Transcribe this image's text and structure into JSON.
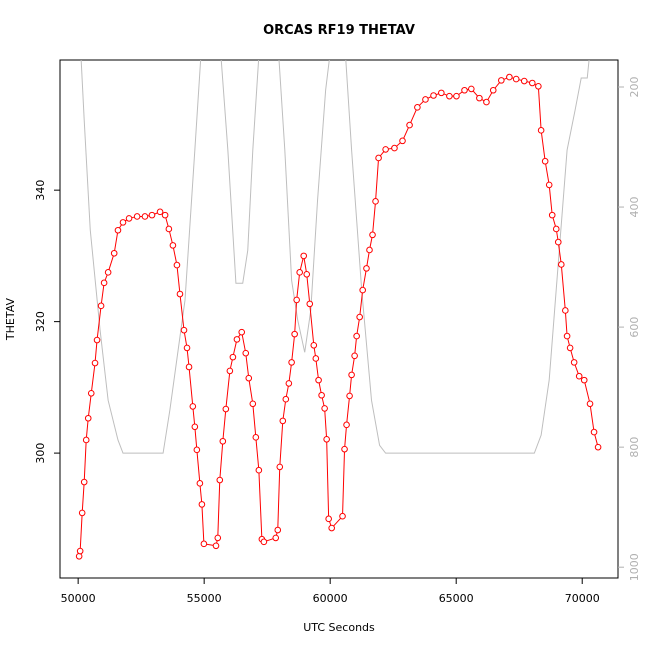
{
  "chart_data": {
    "type": "line",
    "title": "ORCAS RF19 THETAV",
    "xlabel": "UTC Seconds",
    "ylabel": "THETAV",
    "xlim": [
      49280,
      71420
    ],
    "xticks": [
      50000,
      55000,
      60000,
      65000,
      70000
    ],
    "ylim": [
      281,
      359.8
    ],
    "yticks": [
      300,
      320,
      340
    ],
    "y2lim": [
      1018,
      155
    ],
    "y2ticks": [
      200,
      400,
      600,
      800,
      1000
    ],
    "series": [
      {
        "color": "#ff0000",
        "markers": true,
        "x": [
          50040,
          50080,
          50160,
          50240,
          50320,
          50400,
          50520,
          50670,
          50750,
          50910,
          51030,
          51190,
          51430,
          51580,
          51780,
          52020,
          52340,
          52650,
          52930,
          53250,
          53450,
          53600,
          53760,
          53920,
          54040,
          54200,
          54320,
          54400,
          54550,
          54630,
          54710,
          54830,
          54910,
          54990,
          55470,
          55540,
          55620,
          55740,
          55860,
          56020,
          56140,
          56300,
          56490,
          56650,
          56770,
          56930,
          57050,
          57170,
          57290,
          57370,
          57840,
          57920,
          58000,
          58120,
          58240,
          58360,
          58470,
          58590,
          58670,
          58790,
          58950,
          59070,
          59190,
          59350,
          59430,
          59540,
          59660,
          59780,
          59860,
          59940,
          60060,
          60490,
          60570,
          60650,
          60770,
          60850,
          60970,
          61050,
          61170,
          61290,
          61440,
          61560,
          61680,
          61800,
          61920,
          62200,
          62550,
          62870,
          63150,
          63460,
          63780,
          64100,
          64410,
          64730,
          65010,
          65330,
          65600,
          65920,
          66200,
          66470,
          66790,
          67110,
          67380,
          67700,
          68020,
          68260,
          68370,
          68530,
          68690,
          68810,
          68970,
          69050,
          69170,
          69330,
          69400,
          69520,
          69680,
          69880,
          70080,
          70310,
          70470,
          70630
        ],
        "values": [
          284.3,
          285.1,
          290.9,
          295.6,
          302.0,
          305.3,
          309.1,
          313.7,
          317.2,
          322.4,
          325.9,
          327.5,
          330.4,
          333.9,
          335.1,
          335.7,
          336.0,
          336.0,
          336.2,
          336.7,
          336.2,
          334.1,
          331.6,
          328.6,
          324.2,
          318.7,
          316.0,
          313.1,
          307.1,
          304.0,
          300.5,
          295.4,
          292.2,
          286.2,
          285.9,
          287.1,
          295.9,
          301.8,
          306.7,
          312.5,
          314.6,
          317.3,
          318.4,
          315.2,
          311.4,
          307.5,
          302.4,
          297.4,
          286.9,
          286.5,
          287.1,
          288.3,
          297.9,
          304.9,
          308.2,
          310.6,
          313.8,
          318.1,
          323.3,
          327.5,
          330.0,
          327.2,
          322.7,
          316.4,
          314.4,
          311.1,
          308.8,
          306.8,
          302.1,
          290.0,
          288.6,
          290.4,
          300.6,
          304.3,
          308.7,
          311.9,
          314.8,
          317.8,
          320.7,
          324.8,
          328.1,
          330.9,
          333.2,
          338.3,
          344.9,
          346.2,
          346.4,
          347.5,
          349.9,
          352.6,
          353.8,
          354.4,
          354.8,
          354.3,
          354.3,
          355.2,
          355.4,
          354.0,
          353.4,
          355.2,
          356.7,
          357.2,
          356.9,
          356.6,
          356.3,
          355.8,
          349.1,
          344.4,
          340.8,
          336.2,
          334.1,
          332.1,
          328.7,
          321.7,
          317.8,
          316.0,
          313.8,
          311.7,
          311.1,
          307.5,
          303.2,
          300.9
        ]
      },
      {
        "color": "#bebebe",
        "markers": false,
        "axis": "y2",
        "x": [
          50080,
          50240,
          50480,
          50870,
          51190,
          51580,
          51780,
          53370,
          53640,
          54240,
          54630,
          54910,
          55620,
          55940,
          56260,
          56530,
          56730,
          56930,
          57210,
          57920,
          58200,
          58470,
          58710,
          58990,
          59230,
          59500,
          59820,
          60060,
          60570,
          60850,
          61250,
          61640,
          61960,
          62200,
          68100,
          68370,
          68690,
          69090,
          69400,
          69720,
          69960,
          70200,
          70350
        ],
        "values": [
          122,
          255,
          438,
          605,
          722,
          788,
          810,
          810,
          738,
          555,
          305,
          122,
          122,
          305,
          527,
          527,
          472,
          305,
          122,
          122,
          305,
          522,
          588,
          642,
          572,
          388,
          205,
          122,
          122,
          305,
          538,
          722,
          797,
          810,
          810,
          780,
          688,
          472,
          305,
          238,
          185,
          185,
          122
        ]
      }
    ]
  }
}
